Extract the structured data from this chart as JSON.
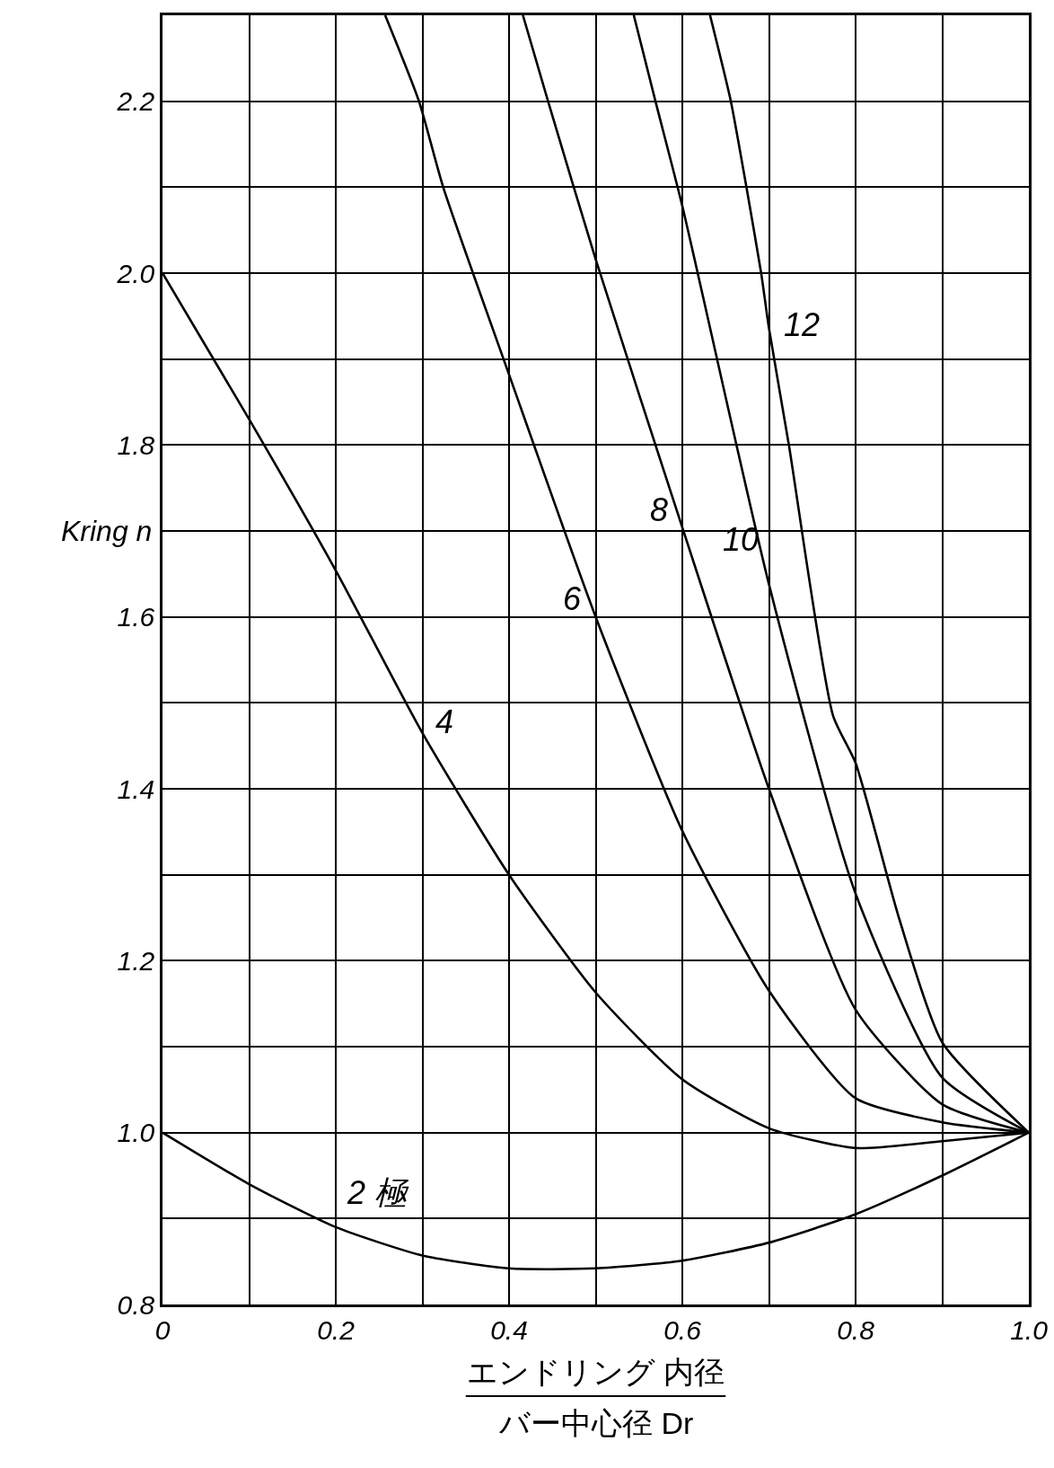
{
  "chart_data": {
    "type": "line",
    "ylabel": "Kring n",
    "xlabel": "エンドリング 内径",
    "xlim": [
      0,
      1
    ],
    "ylim": [
      0.8,
      2.3
    ],
    "xticks": [
      0,
      {
        "value": 0.1,
        "label": null
      },
      0.2,
      {
        "value": 0.3,
        "label": null
      },
      0.4,
      {
        "value": 0.5,
        "label": null
      },
      0.6,
      {
        "value": 0.7,
        "label": null
      },
      0.8,
      {
        "value": 0.9,
        "label": null
      },
      {
        "value": 1,
        "label": "1.0"
      }
    ],
    "yticks": [
      0.8,
      {
        "value": 0.9,
        "label": null
      },
      {
        "value": 1,
        "label": "1.0"
      },
      {
        "value": 1.1,
        "label": null
      },
      1.2,
      {
        "value": 1.3,
        "label": null
      },
      1.4,
      {
        "value": 1.5,
        "label": null
      },
      1.6,
      {
        "value": 1.7,
        "label": null
      },
      1.8,
      {
        "value": 1.9,
        "label": null
      },
      {
        "value": 2,
        "label": "2.0"
      },
      {
        "value": 2.1,
        "label": null
      },
      2.2
    ],
    "grid": true,
    "legend": false,
    "marker": "none",
    "line_style": "solid",
    "series": [
      {
        "name": "2 極",
        "color": "#000000",
        "x": [
          0,
          0.1,
          0.2,
          0.3,
          0.4,
          0.5,
          0.6,
          0.7,
          0.8,
          0.9,
          1
        ],
        "values": [
          1,
          0.94,
          0.89,
          0.857,
          0.842,
          0.842,
          0.851,
          0.872,
          0.905,
          0.95,
          1
        ]
      },
      {
        "name": "4",
        "color": "#000000",
        "x": [
          0,
          0.1,
          0.2,
          0.3,
          0.4,
          0.5,
          0.6,
          0.7,
          0.8,
          0.9,
          1
        ],
        "values": [
          2,
          1.83,
          1.654,
          1.465,
          1.3,
          1.163,
          1.062,
          1.005,
          0.982,
          0.99,
          1
        ]
      },
      {
        "name": "6",
        "color": "#000000",
        "x": [
          0.257,
          0.296,
          0.324,
          0.4,
          0.5,
          0.6,
          0.7,
          0.8,
          0.9,
          1
        ],
        "values": [
          2.3,
          2.2,
          2.1,
          1.882,
          1.6,
          1.351,
          1.165,
          1.04,
          1.012,
          1
        ]
      },
      {
        "name": "8",
        "color": "#000000",
        "x": [
          0.416,
          0.445,
          0.5,
          0.6,
          0.7,
          0.8,
          0.9,
          1
        ],
        "values": [
          2.3,
          2.2,
          2.016,
          1.704,
          1.4,
          1.143,
          1.033,
          1
        ]
      },
      {
        "name": "10",
        "color": "#000000",
        "x": [
          0.544,
          0.569,
          0.6,
          0.7,
          0.8,
          0.9,
          1
        ],
        "values": [
          2.3,
          2.2,
          2.078,
          1.638,
          1.278,
          1.064,
          1
        ]
      },
      {
        "name": "12",
        "color": "#000000",
        "x": [
          0.632,
          0.656,
          0.674,
          0.691,
          0.7,
          0.723,
          0.774,
          0.8,
          0.85,
          0.9,
          1
        ],
        "values": [
          2.3,
          2.2,
          2.1,
          2,
          1.936,
          1.8,
          1.485,
          1.43,
          1.25,
          1.105,
          1
        ]
      }
    ],
    "annotations": [
      "バー中心径 Dr"
    ]
  }
}
